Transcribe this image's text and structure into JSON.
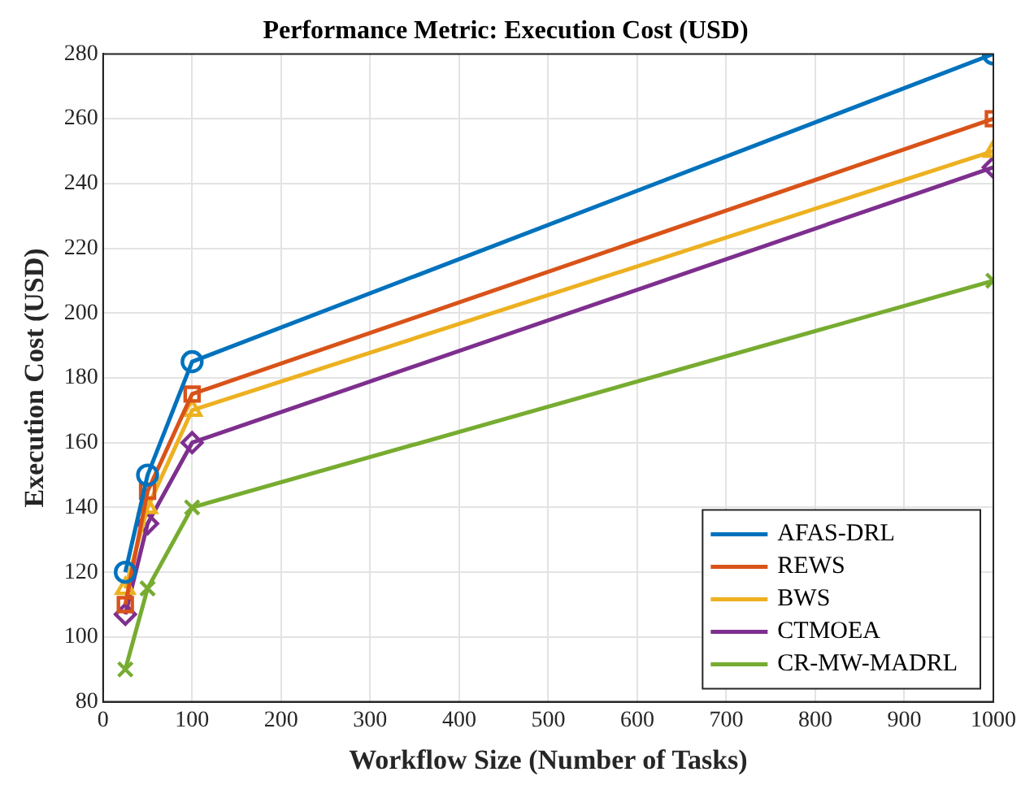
{
  "chart_data": {
    "type": "line",
    "title": "Performance Metric: Execution Cost (USD)",
    "xlabel": "Workflow Size (Number of Tasks)",
    "ylabel": "Execution Cost (USD)",
    "x": [
      25,
      50,
      100,
      1000
    ],
    "series": [
      {
        "name": "AFAS-DRL",
        "color": "#0072bd",
        "marker": "circle",
        "values": [
          120,
          150,
          185,
          280
        ]
      },
      {
        "name": "REWS",
        "color": "#d95319",
        "marker": "square",
        "values": [
          110,
          145,
          175,
          260
        ]
      },
      {
        "name": "BWS",
        "color": "#edb120",
        "marker": "triangle",
        "values": [
          115,
          140,
          170,
          250
        ]
      },
      {
        "name": "CTMOEA",
        "color": "#7e2f8e",
        "marker": "diamond",
        "values": [
          107,
          135,
          160,
          245
        ]
      },
      {
        "name": "CR-MW-MADRL",
        "color": "#77ac30",
        "marker": "cross",
        "values": [
          90,
          115,
          140,
          210
        ]
      }
    ],
    "xlim": [
      0,
      1000
    ],
    "xticks": [
      0,
      100,
      200,
      300,
      400,
      500,
      600,
      700,
      800,
      900,
      1000
    ],
    "ylim": [
      80,
      280
    ],
    "yticks": [
      80,
      100,
      120,
      140,
      160,
      180,
      200,
      220,
      240,
      260,
      280
    ],
    "grid": true,
    "legend": "bottom right",
    "line_style": "solid"
  }
}
